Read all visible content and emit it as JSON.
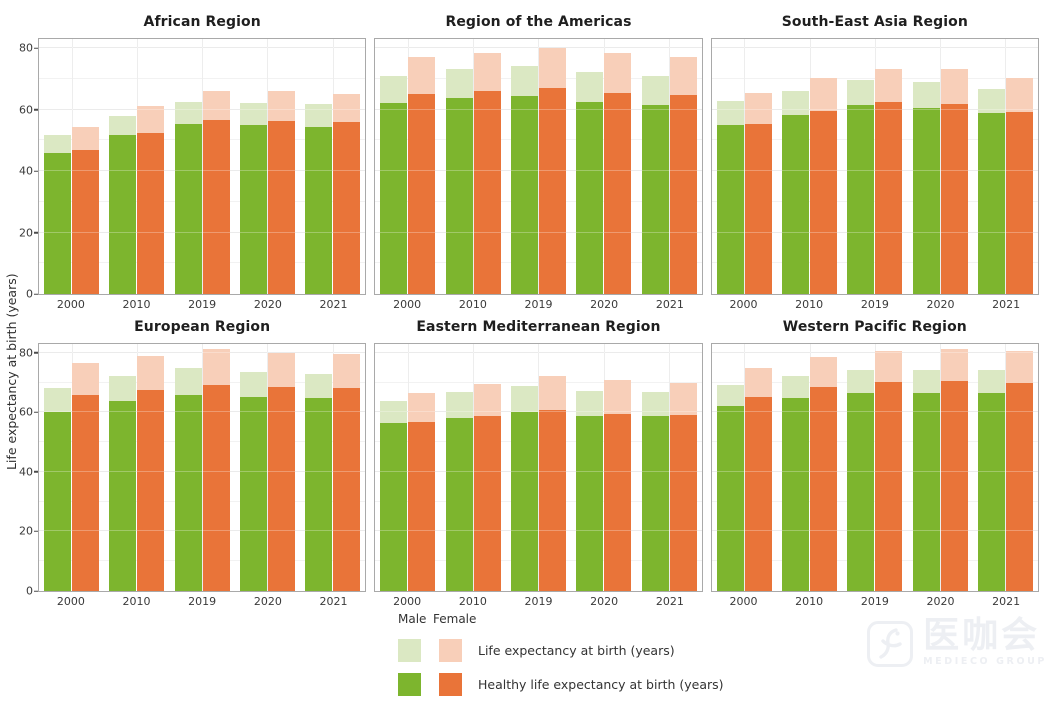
{
  "colors": {
    "male_life_expectancy": "#dbe8c3",
    "male_healthy_life_expectancy": "#7db52e",
    "female_life_expectancy": "#f8cfb9",
    "female_healthy_life_expectancy": "#e97439",
    "panel_border": "#a9a9a9",
    "grid_major": "#e4e4e4",
    "grid_minor": "#f2f2f2"
  },
  "y_axis_title": "Life expectancy at birth (years)",
  "legend": {
    "col_headers": {
      "male": "Male",
      "female": "Female"
    },
    "rows": [
      {
        "label": "Life expectancy at birth (years)",
        "male_color": "#dbe8c3",
        "female_color": "#f8cfb9"
      },
      {
        "label": "Healthy life expectancy at birth (years)",
        "male_color": "#7db52e",
        "female_color": "#e97439"
      }
    ]
  },
  "watermark": {
    "cn": "医咖会",
    "en": "MEDIECO GROUP"
  },
  "chart_data": {
    "type": "bar",
    "subtype": "grouped-overlay",
    "categories": [
      "2000",
      "2010",
      "2019",
      "2020",
      "2021"
    ],
    "ylabel": "Life expectancy at birth (years)",
    "ylim": [
      0,
      83
    ],
    "yticks": [
      0,
      20,
      40,
      60,
      80
    ],
    "minor_ticks": [
      10,
      30,
      50,
      70
    ],
    "grid": true,
    "legend_position": "bottom",
    "series_meta": [
      {
        "key": "male_life_expectancy",
        "sex": "Male",
        "measure": "Life expectancy at birth (years)",
        "color": "#dbe8c3"
      },
      {
        "key": "male_healthy_life_expectancy",
        "sex": "Male",
        "measure": "Healthy life expectancy at birth (years)",
        "color": "#7db52e"
      },
      {
        "key": "female_life_expectancy",
        "sex": "Female",
        "measure": "Life expectancy at birth (years)",
        "color": "#f8cfb9"
      },
      {
        "key": "female_healthy_life_expectancy",
        "sex": "Female",
        "measure": "Healthy life expectancy at birth (years)",
        "color": "#e97439"
      }
    ],
    "facets": [
      {
        "name": "African Region",
        "male_life_expectancy": [
          51.8,
          58.1,
          62.4,
          62.2,
          61.9
        ],
        "male_healthy_life_expectancy": [
          45.9,
          51.6,
          55.2,
          54.9,
          54.5
        ],
        "female_life_expectancy": [
          54.5,
          61.2,
          66.2,
          66.0,
          65.2
        ],
        "female_healthy_life_expectancy": [
          47.0,
          52.5,
          56.5,
          56.2,
          56.0
        ]
      },
      {
        "name": "Region of the Americas",
        "male_life_expectancy": [
          71.0,
          73.3,
          74.3,
          72.1,
          71.0
        ],
        "male_healthy_life_expectancy": [
          62.2,
          63.8,
          64.5,
          62.5,
          61.6
        ],
        "female_life_expectancy": [
          77.0,
          78.4,
          80.0,
          78.3,
          77.3
        ],
        "female_healthy_life_expectancy": [
          65.0,
          66.1,
          67.1,
          65.5,
          64.8
        ]
      },
      {
        "name": "South-East Asia Region",
        "male_life_expectancy": [
          62.7,
          66.1,
          69.6,
          68.9,
          66.7
        ],
        "male_healthy_life_expectancy": [
          55.1,
          58.4,
          61.4,
          60.7,
          58.9
        ],
        "female_life_expectancy": [
          65.5,
          70.2,
          73.4,
          73.1,
          70.4
        ],
        "female_healthy_life_expectancy": [
          55.4,
          59.6,
          62.4,
          61.9,
          59.4
        ]
      },
      {
        "name": "European Region",
        "male_life_expectancy": [
          68.2,
          72.4,
          74.9,
          73.6,
          73.0
        ],
        "male_healthy_life_expectancy": [
          60.2,
          63.8,
          66.0,
          65.2,
          64.7
        ],
        "female_life_expectancy": [
          76.7,
          79.1,
          81.2,
          80.0,
          79.5
        ],
        "female_healthy_life_expectancy": [
          65.8,
          67.4,
          69.1,
          68.6,
          68.1
        ]
      },
      {
        "name": "Eastern Mediterranean Region",
        "male_life_expectancy": [
          63.8,
          66.8,
          68.8,
          67.1,
          66.8
        ],
        "male_healthy_life_expectancy": [
          56.6,
          58.3,
          60.2,
          58.9,
          58.7
        ],
        "female_life_expectancy": [
          66.7,
          69.7,
          72.1,
          70.8,
          69.9
        ],
        "female_healthy_life_expectancy": [
          56.8,
          58.9,
          60.8,
          59.6,
          59.0
        ]
      },
      {
        "name": "Western Pacific Region",
        "male_life_expectancy": [
          69.2,
          72.3,
          74.1,
          74.1,
          74.2
        ],
        "male_healthy_life_expectancy": [
          62.1,
          64.8,
          66.6,
          66.6,
          66.5
        ],
        "female_life_expectancy": [
          74.9,
          78.7,
          80.6,
          81.3,
          80.7
        ],
        "female_healthy_life_expectancy": [
          65.3,
          68.7,
          70.2,
          70.6,
          69.8
        ]
      }
    ]
  }
}
